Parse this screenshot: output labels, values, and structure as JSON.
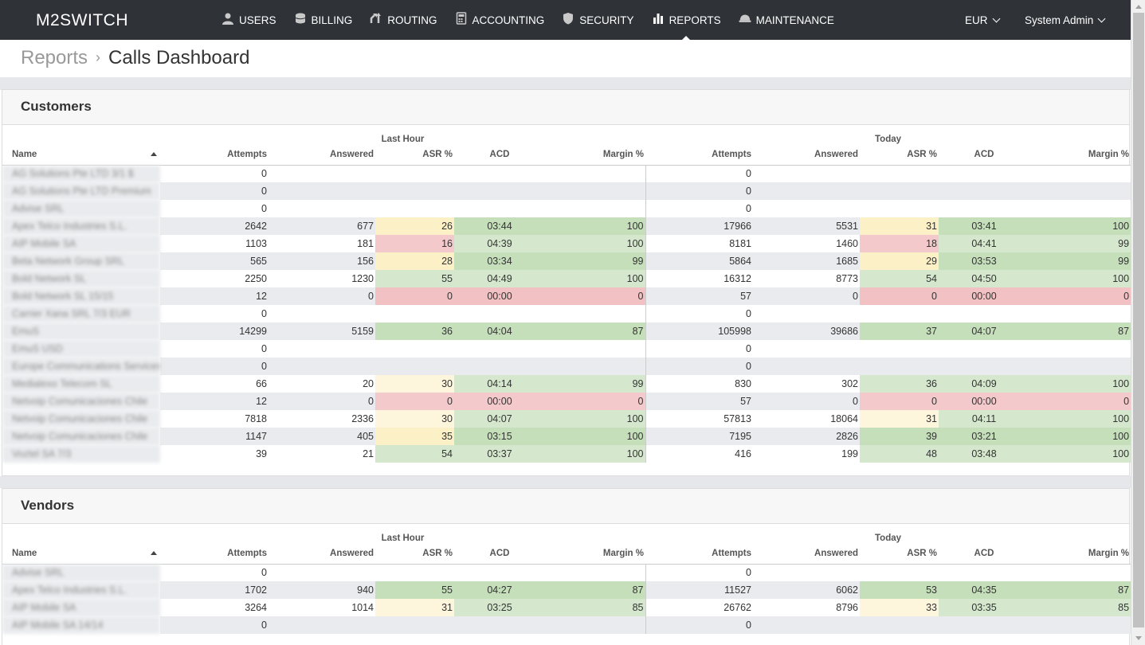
{
  "app": {
    "logo": "M2SWITCH",
    "nav": [
      {
        "label": "USERS",
        "icon": "user-icon"
      },
      {
        "label": "BILLING",
        "icon": "coins-icon"
      },
      {
        "label": "ROUTING",
        "icon": "routing-arrows-icon"
      },
      {
        "label": "ACCOUNTING",
        "icon": "calculator-icon"
      },
      {
        "label": "SECURITY",
        "icon": "shield-icon"
      },
      {
        "label": "REPORTS",
        "icon": "bar-chart-icon",
        "active": true
      },
      {
        "label": "MAINTENANCE",
        "icon": "hard-hat-icon"
      }
    ],
    "currency": "EUR",
    "user": "System Admin"
  },
  "breadcrumb": {
    "parent": "Reports",
    "separator": "›",
    "current": "Calls Dashboard"
  },
  "columns": {
    "group_last_hour": "Last Hour",
    "group_today": "Today",
    "name": "Name",
    "attempts": "Attempts",
    "answered": "Answered",
    "asr": "ASR %",
    "acd": "ACD",
    "margin": "Margin %"
  },
  "colors": {
    "good_dark": "#c6dfbb",
    "good_light": "#d5e8cd",
    "warn_dark": "#fcf0c6",
    "warn_light": "#fdf6dc",
    "bad": "#f2c1c3",
    "topbar": "#2f3338"
  },
  "customers": {
    "title": "Customers",
    "rows": [
      {
        "name": "AG Solutions Pte LTD 3/1 $",
        "lh": [
          "0",
          "",
          "",
          "",
          ""
        ],
        "td": [
          "0",
          "",
          "",
          "",
          ""
        ],
        "c": [
          "",
          "",
          "",
          "",
          "",
          ""
        ]
      },
      {
        "name": "AG Solutions Pte LTD Premium",
        "lh": [
          "0",
          "",
          "",
          "",
          ""
        ],
        "td": [
          "0",
          "",
          "",
          "",
          ""
        ],
        "c": [
          "",
          "",
          "",
          "",
          "",
          ""
        ]
      },
      {
        "name": "Advise SRL",
        "lh": [
          "0",
          "",
          "",
          "",
          ""
        ],
        "td": [
          "0",
          "",
          "",
          "",
          ""
        ],
        "c": [
          "",
          "",
          "",
          "",
          "",
          ""
        ]
      },
      {
        "name": "Apex Telco Industries S.L.",
        "lh": [
          "2642",
          "677",
          "26",
          "03:44",
          "100"
        ],
        "td": [
          "17966",
          "5531",
          "31",
          "03:41",
          "100"
        ],
        "c": [
          "y1",
          "g1",
          "g1",
          "y1",
          "g1",
          "g1"
        ]
      },
      {
        "name": "AIP Mobile SA",
        "lh": [
          "1103",
          "181",
          "16",
          "04:39",
          "100"
        ],
        "td": [
          "8181",
          "1460",
          "18",
          "04:41",
          "99"
        ],
        "c": [
          "r2",
          "g2",
          "g2",
          "r2",
          "g2",
          "g2"
        ]
      },
      {
        "name": "Beta Network Group SRL",
        "lh": [
          "565",
          "156",
          "28",
          "03:34",
          "99"
        ],
        "td": [
          "5864",
          "1685",
          "29",
          "03:53",
          "99"
        ],
        "c": [
          "y1",
          "g1",
          "g1",
          "y1",
          "g1",
          "g1"
        ]
      },
      {
        "name": "Bold Network SL",
        "lh": [
          "2250",
          "1230",
          "55",
          "04:49",
          "100"
        ],
        "td": [
          "16312",
          "8773",
          "54",
          "04:50",
          "100"
        ],
        "c": [
          "g2",
          "g2",
          "g2",
          "g2",
          "g2",
          "g2"
        ]
      },
      {
        "name": "Bold Network SL 15/15",
        "lh": [
          "12",
          "0",
          "0",
          "00:00",
          "0"
        ],
        "td": [
          "57",
          "0",
          "0",
          "00:00",
          "0"
        ],
        "c": [
          "r1",
          "r1",
          "r1",
          "r1",
          "r1",
          "r1"
        ]
      },
      {
        "name": "Carrier Xana SRL 7/3 EUR",
        "lh": [
          "0",
          "",
          "",
          "",
          ""
        ],
        "td": [
          "0",
          "",
          "",
          "",
          ""
        ],
        "c": [
          "",
          "",
          "",
          "",
          "",
          ""
        ]
      },
      {
        "name": "EmuS",
        "lh": [
          "14299",
          "5159",
          "36",
          "04:04",
          "87"
        ],
        "td": [
          "105998",
          "39686",
          "37",
          "04:07",
          "87"
        ],
        "c": [
          "g1",
          "g1",
          "g1",
          "g1",
          "g1",
          "g1"
        ]
      },
      {
        "name": "EmuS USD",
        "lh": [
          "0",
          "",
          "",
          "",
          ""
        ],
        "td": [
          "0",
          "",
          "",
          "",
          ""
        ],
        "c": [
          "",
          "",
          "",
          "",
          "",
          ""
        ]
      },
      {
        "name": "Europe Communications Services",
        "lh": [
          "0",
          "",
          "",
          "",
          ""
        ],
        "td": [
          "0",
          "",
          "",
          "",
          ""
        ],
        "c": [
          "",
          "",
          "",
          "",
          "",
          ""
        ]
      },
      {
        "name": "Medialexo Telecom SL",
        "lh": [
          "66",
          "20",
          "30",
          "04:14",
          "99"
        ],
        "td": [
          "830",
          "302",
          "36",
          "04:09",
          "100"
        ],
        "c": [
          "y2",
          "g2",
          "g2",
          "g2",
          "g2",
          "g2"
        ]
      },
      {
        "name": "Netvoip Comunicaciones Chile",
        "lh": [
          "12",
          "0",
          "0",
          "00:00",
          "0"
        ],
        "td": [
          "57",
          "0",
          "0",
          "00:00",
          "0"
        ],
        "c": [
          "r2",
          "r2",
          "r2",
          "r2",
          "r2",
          "r2"
        ]
      },
      {
        "name": "Netvoip Comunicaciones Chile",
        "lh": [
          "7818",
          "2336",
          "30",
          "04:07",
          "100"
        ],
        "td": [
          "57813",
          "18064",
          "31",
          "04:11",
          "100"
        ],
        "c": [
          "y2",
          "g2",
          "g2",
          "y2",
          "g2",
          "g2"
        ]
      },
      {
        "name": "Netvoip Comunicaciones Chile",
        "lh": [
          "1147",
          "405",
          "35",
          "03:15",
          "100"
        ],
        "td": [
          "7195",
          "2826",
          "39",
          "03:21",
          "100"
        ],
        "c": [
          "y1",
          "g1",
          "g1",
          "g1",
          "g1",
          "g1"
        ]
      },
      {
        "name": "Voztel SA 7/3",
        "lh": [
          "39",
          "21",
          "54",
          "03:37",
          "100"
        ],
        "td": [
          "416",
          "199",
          "48",
          "03:48",
          "100"
        ],
        "c": [
          "g2",
          "g2",
          "g2",
          "g2",
          "g2",
          "g2"
        ]
      }
    ]
  },
  "vendors": {
    "title": "Vendors",
    "rows": [
      {
        "name": "Advise SRL",
        "lh": [
          "0",
          "",
          "",
          "",
          ""
        ],
        "td": [
          "0",
          "",
          "",
          "",
          ""
        ],
        "c": [
          "",
          "",
          "",
          "",
          "",
          ""
        ]
      },
      {
        "name": "Apex Telco Industries S.L.",
        "lh": [
          "1702",
          "940",
          "55",
          "04:27",
          "87"
        ],
        "td": [
          "11527",
          "6062",
          "53",
          "04:35",
          "87"
        ],
        "c": [
          "g1",
          "g1",
          "g1",
          "g1",
          "g1",
          "g1"
        ]
      },
      {
        "name": "AIP Mobile SA",
        "lh": [
          "3264",
          "1014",
          "31",
          "03:25",
          "85"
        ],
        "td": [
          "26762",
          "8796",
          "33",
          "03:35",
          "85"
        ],
        "c": [
          "y2",
          "g2",
          "g2",
          "y2",
          "g2",
          "g2"
        ]
      },
      {
        "name": "AIP Mobile SA 14/14",
        "lh": [
          "0",
          "",
          "",
          "",
          ""
        ],
        "td": [
          "0",
          "",
          "",
          "",
          ""
        ],
        "c": [
          "",
          "",
          "",
          "",
          "",
          ""
        ]
      }
    ]
  }
}
